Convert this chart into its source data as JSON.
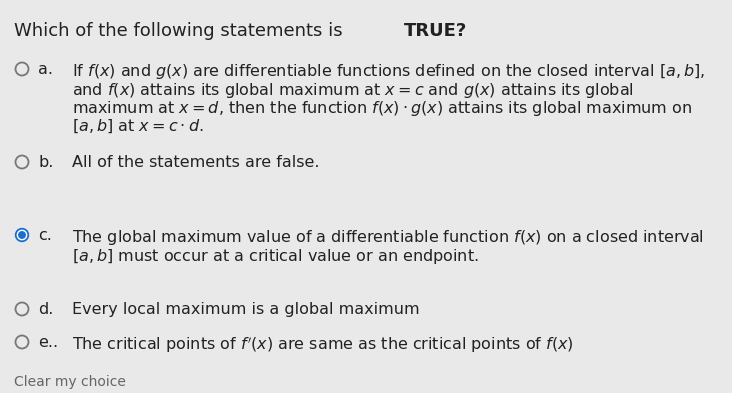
{
  "background_color": "#e9e9e9",
  "text_color": "#222222",
  "title_normal": "Which of the following statements is ",
  "title_bold": "TRUE?",
  "title_fontsize": 13.0,
  "body_fontsize": 11.5,
  "circle_unselected_color": "#777777",
  "circle_selected_color": "#1a6fcc",
  "options": [
    {
      "label": "a.",
      "selected": false,
      "lines": [
        "If $f(x)$ and $g(x)$ are differentiable functions defined on the closed interval $[a, b]$,",
        "and $f(x)$ attains its global maximum at $x = c$ and $g(x)$ attains its global",
        "maximum at $x = d$, then the function $f(x) \\cdot g(x)$ attains its global maximum on",
        "$[a, b]$ at $x = c \\cdot d$."
      ]
    },
    {
      "label": "b.",
      "selected": false,
      "lines": [
        "All of the statements are false."
      ]
    },
    {
      "label": "c.",
      "selected": true,
      "lines": [
        "The global maximum value of a differentiable function $f(x)$ on a closed interval",
        "$[a, b]$ must occur at a critical value or an endpoint."
      ]
    },
    {
      "label": "d.",
      "selected": false,
      "lines": [
        "Every local maximum is a global maximum"
      ]
    },
    {
      "label": "e..",
      "selected": false,
      "lines": [
        "The critical points of $f'(x)$ are same as the critical points of $f(x)$"
      ]
    }
  ],
  "footer": "Clear my choice"
}
